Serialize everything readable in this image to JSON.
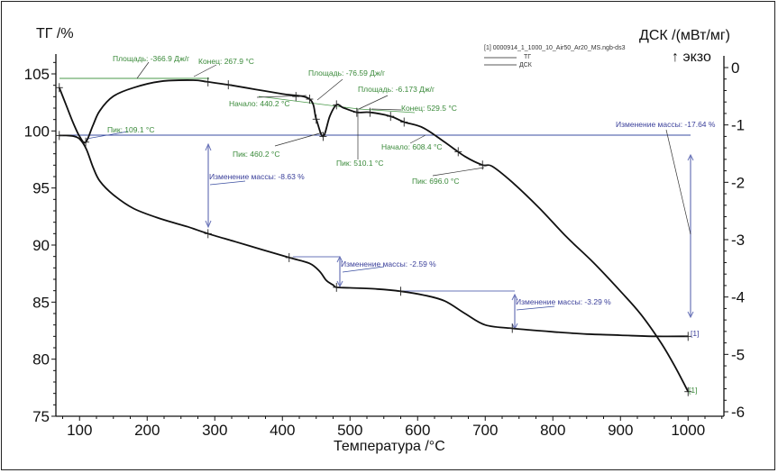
{
  "chart_data": {
    "type": "line",
    "title": "",
    "xlabel": "Температура /°C",
    "ylabel_left": "ТГ /%",
    "ylabel_right": "ДСК /(мВт/мг)",
    "exo_label": "↑ экзо",
    "xlim": [
      65,
      1053
    ],
    "ylim_left": [
      75,
      106.5
    ],
    "ylim_right": [
      -6,
      0.2
    ],
    "x_ticks": [
      100,
      200,
      300,
      400,
      500,
      600,
      700,
      800,
      900,
      1000
    ],
    "y_left_ticks": [
      75,
      80,
      85,
      90,
      95,
      100,
      105
    ],
    "y_right_ticks": [
      0,
      -1,
      -2,
      -3,
      -4,
      -5,
      -6
    ],
    "grid": false,
    "legend": {
      "position": "top-right",
      "file": "[1] 0000914_1_1000_10_Air50_Ar20_MS.ngb-ds3",
      "entries": [
        "ТГ",
        "ДСК"
      ]
    },
    "series": [
      {
        "name": "ТГ",
        "axis": "left",
        "color": "#111111",
        "x": [
          70,
          80,
          90,
          100,
          110,
          120,
          130,
          150,
          180,
          220,
          260,
          290,
          330,
          370,
          410,
          440,
          455,
          465,
          475,
          480,
          500,
          540,
          575,
          610,
          640,
          670,
          700,
          740,
          800,
          850,
          900,
          950,
          1000
        ],
        "y": [
          99.6,
          99.6,
          99.55,
          99.3,
          98.4,
          96.8,
          95.6,
          94.4,
          93.2,
          92.3,
          91.6,
          91.0,
          90.3,
          89.6,
          88.9,
          88.4,
          87.7,
          86.9,
          86.5,
          86.3,
          86.25,
          86.15,
          85.95,
          85.6,
          85.1,
          84.0,
          83.0,
          82.7,
          82.4,
          82.2,
          82.1,
          82.0,
          82.0
        ]
      },
      {
        "name": "ДСК",
        "axis": "right",
        "color": "#111111",
        "x": [
          70,
          80,
          90,
          100,
          109.1,
          120,
          130,
          150,
          180,
          220,
          267.9,
          290,
          320,
          360,
          400,
          440.2,
          450,
          460.2,
          470,
          480,
          490,
          510.1,
          529.5,
          560,
          580,
          608.4,
          640,
          670,
          696,
          710,
          740,
          780,
          820,
          860,
          900,
          930,
          960,
          980,
          1000
        ],
        "y": [
          -0.35,
          -0.65,
          -0.95,
          -1.2,
          -1.3,
          -1.0,
          -0.75,
          -0.5,
          -0.35,
          -0.24,
          -0.22,
          -0.25,
          -0.3,
          -0.38,
          -0.46,
          -0.55,
          -0.9,
          -1.2,
          -0.85,
          -0.65,
          -0.7,
          -0.78,
          -0.78,
          -0.85,
          -0.95,
          -1.05,
          -1.3,
          -1.55,
          -1.7,
          -1.72,
          -2.0,
          -2.45,
          -2.95,
          -3.4,
          -3.9,
          -4.3,
          -4.8,
          -5.2,
          -5.65
        ]
      }
    ],
    "annotations_dsc": [
      {
        "text": "Площадь: -366.9 Дж/г",
        "kind": "area"
      },
      {
        "text": "Конец: 267.9 °C",
        "kind": "end"
      },
      {
        "text": "Пик: 109.1 °C",
        "kind": "peak"
      },
      {
        "text": "Площадь: -76.59 Дж/г",
        "kind": "area"
      },
      {
        "text": "Начало: 440.2 °C",
        "kind": "onset"
      },
      {
        "text": "Пик: 460.2 °C",
        "kind": "peak"
      },
      {
        "text": "Площадь: -6.173 Дж/г",
        "kind": "area"
      },
      {
        "text": "Конец: 529.5 °C",
        "kind": "end"
      },
      {
        "text": "Пик: 510.1 °C",
        "kind": "peak"
      },
      {
        "text": "Начало: 608.4 °C",
        "kind": "onset"
      },
      {
        "text": "Пик: 696.0 °C",
        "kind": "peak"
      }
    ],
    "annotations_tg": [
      {
        "text": "Изменение массы: -8.63 %",
        "from_temp": 70,
        "to_temp": 290
      },
      {
        "text": "Изменение массы: -2.59 %",
        "from_temp": 410,
        "to_temp": 480
      },
      {
        "text": "Изменение массы: -3.29 %",
        "from_temp": 575,
        "to_temp": 740
      },
      {
        "text": "Изменение массы: -17.64 %",
        "from_temp": 70,
        "to_temp": 1000
      }
    ],
    "end_markers": [
      "[1]",
      "[1]"
    ]
  }
}
